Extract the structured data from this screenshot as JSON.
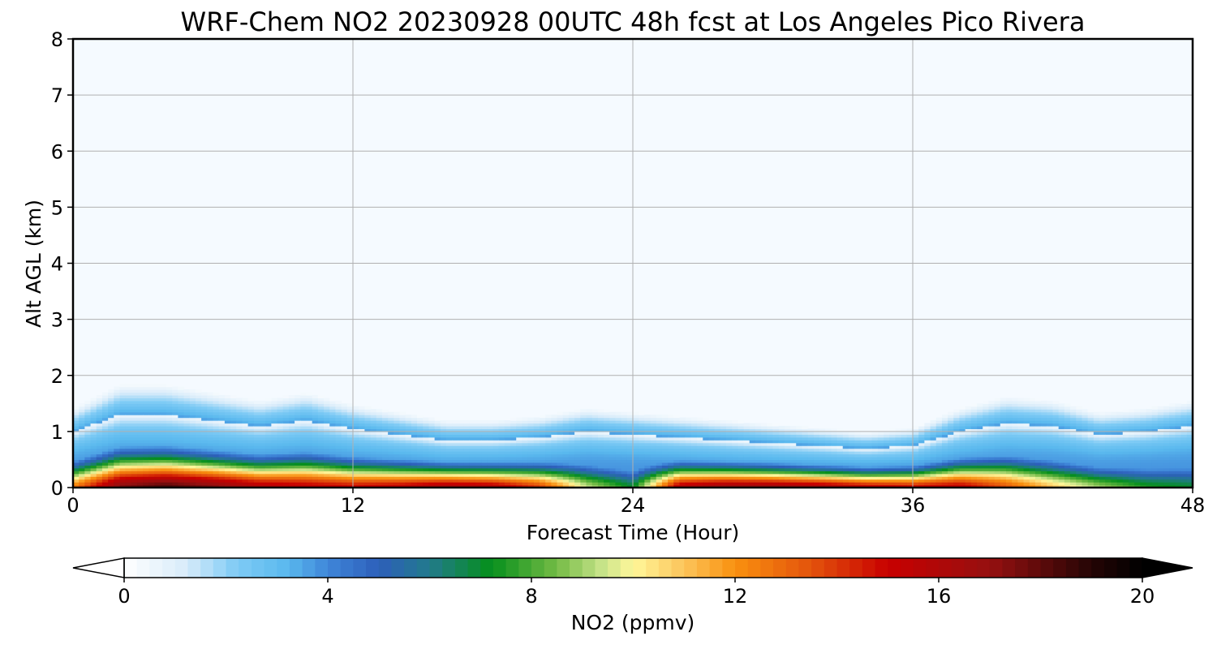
{
  "chart_data": {
    "type": "heatmap",
    "title": "WRF-Chem NO2  20230928 00UTC 48h fcst at Los Angeles Pico Rivera",
    "xlabel": "Forecast Time (Hour)",
    "ylabel": "Alt AGL (km)",
    "xlim": [
      0,
      48
    ],
    "ylim": [
      0,
      8
    ],
    "xticks": [
      0,
      12,
      24,
      36,
      48
    ],
    "yticks": [
      0,
      1,
      2,
      3,
      4,
      5,
      6,
      7,
      8
    ],
    "grid": true,
    "colorbar": {
      "label": "NO2  (ppmv)",
      "range": [
        0,
        20
      ],
      "ticks": [
        0,
        4,
        8,
        12,
        16,
        20
      ],
      "extend": "both",
      "orientation": "horizontal",
      "colors": [
        {
          "v": 0,
          "c": "#ffffff"
        },
        {
          "v": 1.2,
          "c": "#d9ecfa"
        },
        {
          "v": 2.2,
          "c": "#7fcbf5"
        },
        {
          "v": 3.2,
          "c": "#5ab9ee"
        },
        {
          "v": 4.0,
          "c": "#3f86d9"
        },
        {
          "v": 5.0,
          "c": "#2d5fba"
        },
        {
          "v": 6.0,
          "c": "#227a8c"
        },
        {
          "v": 7.2,
          "c": "#058f1c"
        },
        {
          "v": 8.5,
          "c": "#74bb45"
        },
        {
          "v": 9.4,
          "c": "#c8e48a"
        },
        {
          "v": 10.0,
          "c": "#fff79a"
        },
        {
          "v": 11.0,
          "c": "#fcc45a"
        },
        {
          "v": 12.0,
          "c": "#f9900f"
        },
        {
          "v": 13.5,
          "c": "#e3530c"
        },
        {
          "v": 15.0,
          "c": "#c80000"
        },
        {
          "v": 17.0,
          "c": "#961010"
        },
        {
          "v": 19.0,
          "c": "#250505"
        },
        {
          "v": 20.0,
          "c": "#000000"
        }
      ]
    },
    "series": [
      {
        "name": "surface_no2_ppmv",
        "x": [
          0,
          2,
          4,
          6,
          8,
          10,
          12,
          14,
          16,
          18,
          20,
          22,
          24,
          26,
          28,
          30,
          32,
          34,
          36,
          38,
          40,
          42,
          44,
          46,
          48
        ],
        "values": [
          12.5,
          17.5,
          18.5,
          17.5,
          16.0,
          15.5,
          15.0,
          15.5,
          16.5,
          16.0,
          14.0,
          9.5,
          7.0,
          16.0,
          17.0,
          17.0,
          16.5,
          15.5,
          15.0,
          15.5,
          13.5,
          11.0,
          9.0,
          7.5,
          7.0
        ]
      },
      {
        "name": "mixing_layer_top_km",
        "x": [
          0,
          2,
          4,
          6,
          8,
          10,
          12,
          14,
          16,
          18,
          20,
          22,
          24,
          26,
          28,
          30,
          32,
          34,
          36,
          38,
          40,
          42,
          44,
          46,
          48
        ],
        "values": [
          1.0,
          1.3,
          1.3,
          1.2,
          1.1,
          1.2,
          1.05,
          0.95,
          0.85,
          0.85,
          0.9,
          1.0,
          0.95,
          0.9,
          0.85,
          0.8,
          0.75,
          0.7,
          0.75,
          1.0,
          1.15,
          1.1,
          0.95,
          1.0,
          1.1
        ]
      }
    ]
  }
}
